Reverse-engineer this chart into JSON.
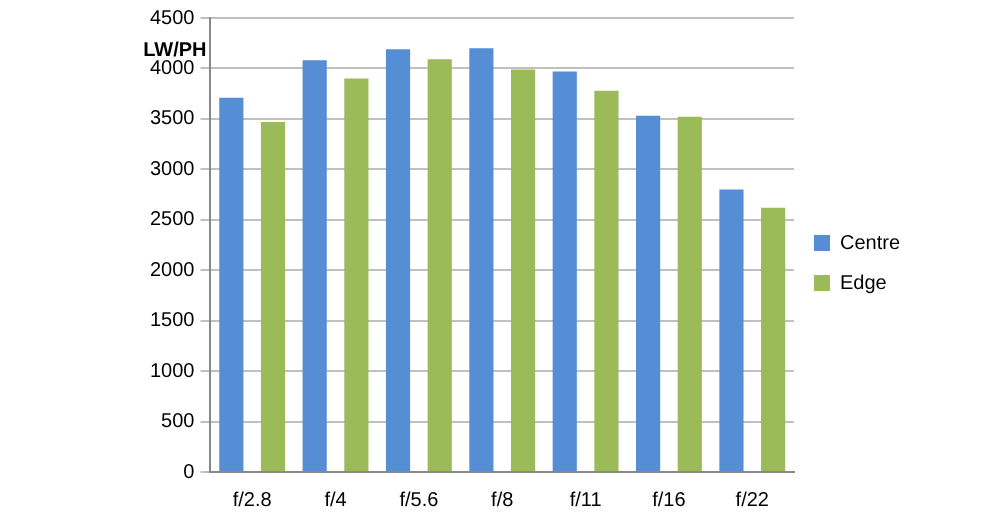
{
  "chart_data": {
    "type": "bar",
    "ylabel": "LW/PH",
    "categories": [
      "f/2.8",
      "f/4",
      "f/5.6",
      "f/8",
      "f/11",
      "f/16",
      "f/22"
    ],
    "series": [
      {
        "name": "Centre",
        "color": "#558ed5",
        "values": [
          3710,
          4080,
          4190,
          4200,
          3970,
          3530,
          2800
        ]
      },
      {
        "name": "Edge",
        "color": "#9bbb59",
        "values": [
          3470,
          3900,
          4090,
          3990,
          3780,
          3520,
          2620
        ]
      }
    ],
    "ylim": [
      0,
      4500
    ],
    "yticks": [
      0,
      500,
      1000,
      1500,
      2000,
      2500,
      3000,
      3500,
      4000,
      4500
    ],
    "grid": "y",
    "legend": "right"
  }
}
